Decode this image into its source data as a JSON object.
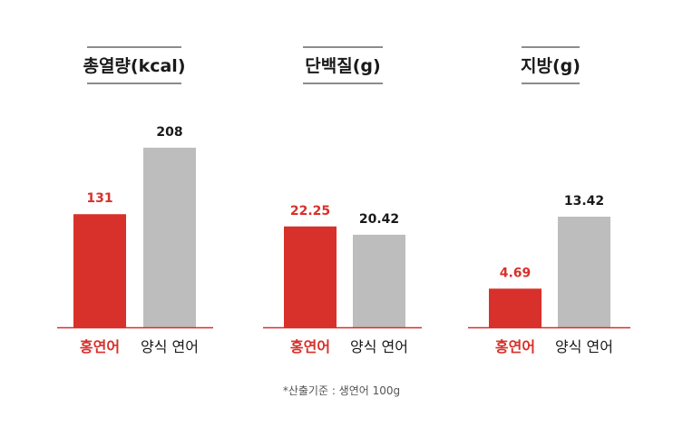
{
  "colors": {
    "accent": "#d8302a",
    "bar_grey": "#bdbdbd",
    "title_rule": "#1a1a1a",
    "value_dark": "#1a1a1a"
  },
  "footnote": "*산출기준 : 생연어 100g",
  "chart_data": [
    {
      "type": "bar",
      "title": "총열량(kcal)",
      "categories": [
        "홍연어",
        "양식 연어"
      ],
      "values": [
        131,
        208
      ],
      "value_labels": [
        "131",
        "208"
      ],
      "ylim": [
        0,
        210
      ],
      "grid": false,
      "legend": "none"
    },
    {
      "type": "bar",
      "title": "단백질(g)",
      "categories": [
        "홍연어",
        "양식 연어"
      ],
      "values": [
        22.25,
        20.42
      ],
      "value_labels": [
        "22.25",
        "20.42"
      ],
      "ylim": [
        0,
        40
      ],
      "grid": false,
      "legend": "none"
    },
    {
      "type": "bar",
      "title": "지방(g)",
      "categories": [
        "홍연어",
        "양식 연어"
      ],
      "values": [
        4.69,
        13.42
      ],
      "value_labels": [
        "4.69",
        "13.42"
      ],
      "ylim": [
        0,
        22
      ],
      "grid": false,
      "legend": "none"
    }
  ]
}
